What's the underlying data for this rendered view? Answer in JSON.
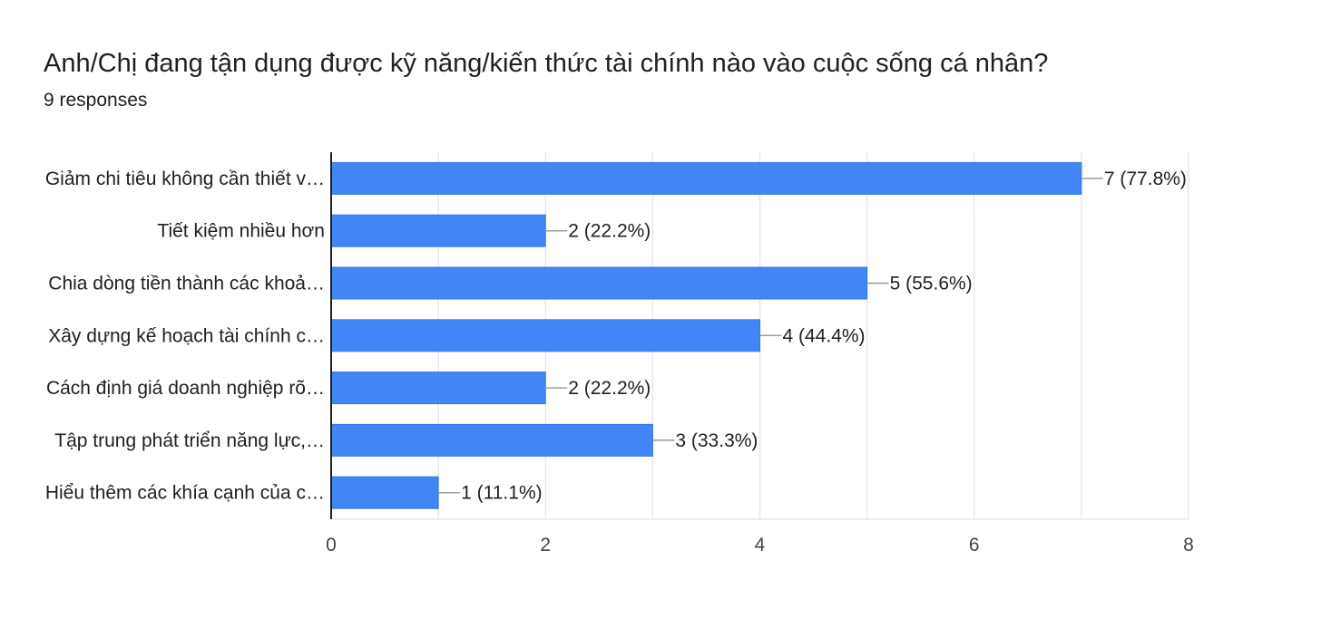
{
  "question": {
    "title": "Anh/Chị đang tận dụng được kỹ năng/kiến thức tài chính nào vào cuộc sống cá nhân?",
    "responses": "9 responses"
  },
  "colors": {
    "bar": "#4285f4",
    "grid": "#e8e8e8",
    "axis": "#202124",
    "leader": "#9e9e9e"
  },
  "chart_data": {
    "type": "bar",
    "orientation": "horizontal",
    "title": "",
    "xlabel": "",
    "ylabel": "",
    "categories": [
      "Giảm chi tiêu không cần thiết v…",
      "Tiết kiệm nhiều hơn",
      "Chia dòng tiền thành các khoả…",
      "Xây dựng kế hoạch tài chính c…",
      "Cách định giá doanh nghiệp rõ…",
      "Tập trung phát triển năng lực,…",
      "Hiểu thêm các khía cạnh của c…"
    ],
    "values": [
      7,
      2,
      5,
      4,
      2,
      3,
      1
    ],
    "data_labels": [
      "7 (77.8%)",
      "2 (22.2%)",
      "5 (55.6%)",
      "4 (44.4%)",
      "2 (22.2%)",
      "3 (33.3%)",
      "1 (11.1%)"
    ],
    "xlim": [
      0,
      8
    ],
    "x_ticks": [
      0,
      2,
      4,
      6,
      8
    ],
    "x_tick_labels": [
      "0",
      "2",
      "4",
      "6",
      "8"
    ],
    "grid": true,
    "legend": "none"
  }
}
